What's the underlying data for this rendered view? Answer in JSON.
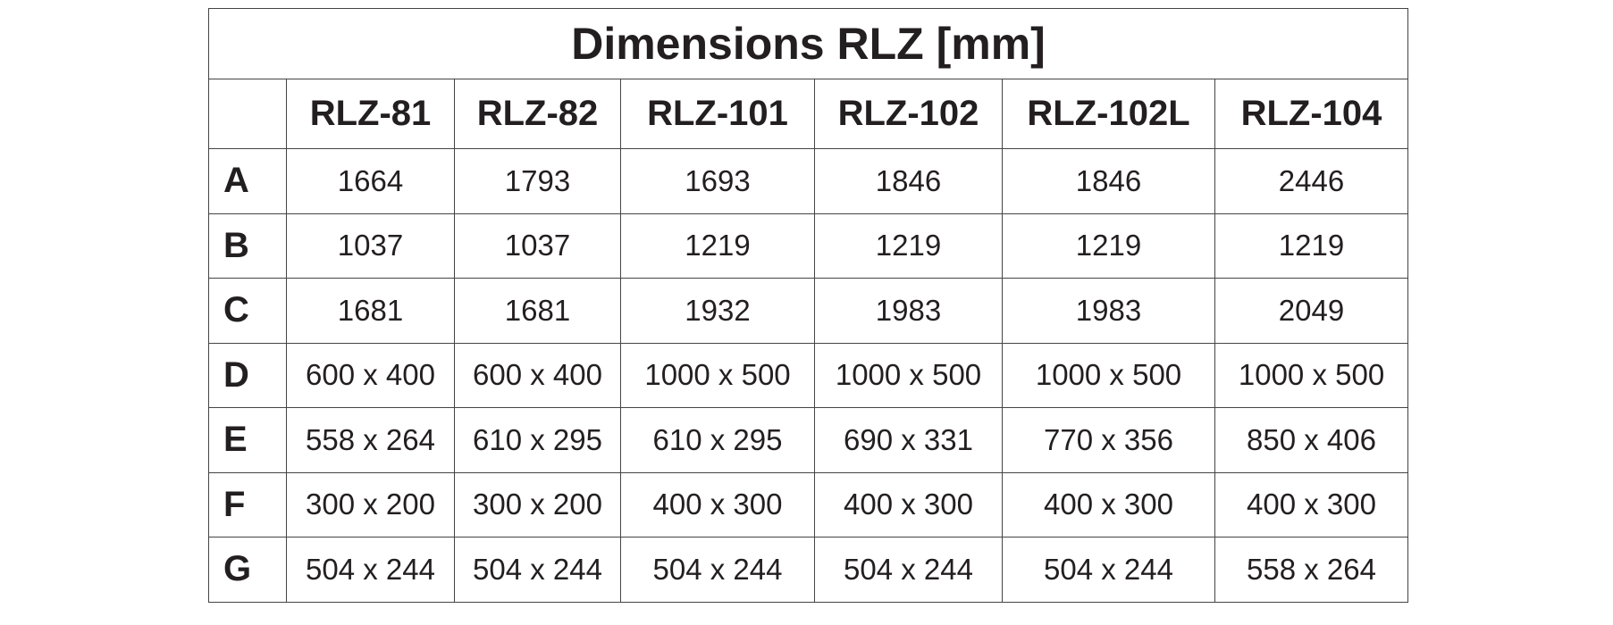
{
  "table": {
    "title": "Dimensions RLZ [mm]",
    "columns": [
      "RLZ-81",
      "RLZ-82",
      "RLZ-101",
      "RLZ-102",
      "RLZ-102L",
      "RLZ-104"
    ],
    "rows": [
      {
        "label": "A",
        "cells": [
          1664,
          1793,
          1693,
          1846,
          1846,
          2446
        ]
      },
      {
        "label": "B",
        "cells": [
          1037,
          1037,
          1219,
          1219,
          1219,
          1219
        ]
      },
      {
        "label": "C",
        "cells": [
          1681,
          1681,
          1932,
          1983,
          1983,
          2049
        ]
      },
      {
        "label": "D",
        "cells": [
          "600 x 400",
          "600 x 400",
          "1000 x 500",
          "1000 x 500",
          "1000 x 500",
          "1000 x 500"
        ]
      },
      {
        "label": "E",
        "cells": [
          "558 x 264",
          "610 x 295",
          "610 x 295",
          "690 x 331",
          "770 x 356",
          "850 x 406"
        ]
      },
      {
        "label": "F",
        "cells": [
          "300 x 200",
          "300 x 200",
          "400 x 300",
          "400 x 300",
          "400 x 300",
          "400 x 300"
        ]
      },
      {
        "label": "G",
        "cells": [
          "504 x 244",
          "504 x 244",
          "504 x 244",
          "504 x 244",
          "504 x 244",
          "558 x 264"
        ]
      }
    ]
  }
}
